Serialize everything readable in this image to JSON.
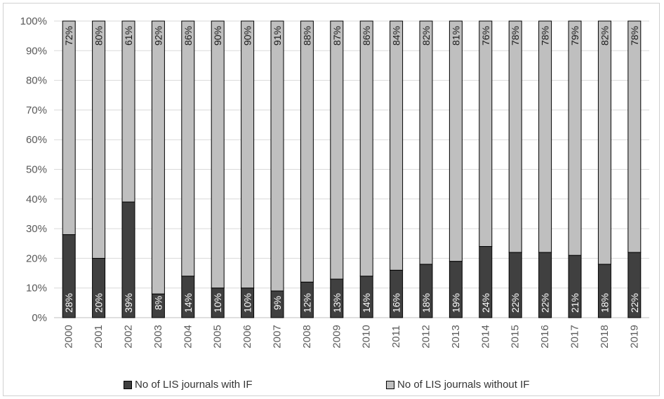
{
  "chart_data": {
    "type": "bar",
    "stacked": true,
    "percent": true,
    "categories": [
      "2000",
      "2001",
      "2002",
      "2003",
      "2004",
      "2005",
      "2006",
      "2007",
      "2008",
      "2009",
      "2010",
      "2011",
      "2012",
      "2013",
      "2014",
      "2015",
      "2016",
      "2017",
      "2018",
      "2019"
    ],
    "series": [
      {
        "name": "No of LIS journals with IF",
        "color": "#404040",
        "values": [
          28,
          20,
          39,
          8,
          14,
          10,
          10,
          9,
          12,
          13,
          14,
          16,
          18,
          19,
          24,
          22,
          22,
          21,
          18,
          22
        ]
      },
      {
        "name": "No of LIS journals without IF",
        "color": "#bfbfbf",
        "values": [
          72,
          80,
          61,
          92,
          86,
          90,
          90,
          91,
          88,
          87,
          86,
          84,
          82,
          81,
          76,
          78,
          78,
          79,
          82,
          78
        ]
      }
    ],
    "yticks": [
      "0%",
      "10%",
      "20%",
      "30%",
      "40%",
      "50%",
      "60%",
      "70%",
      "80%",
      "90%",
      "100%"
    ],
    "ylim": [
      0,
      100
    ],
    "grid": true,
    "legend_position": "bottom"
  }
}
